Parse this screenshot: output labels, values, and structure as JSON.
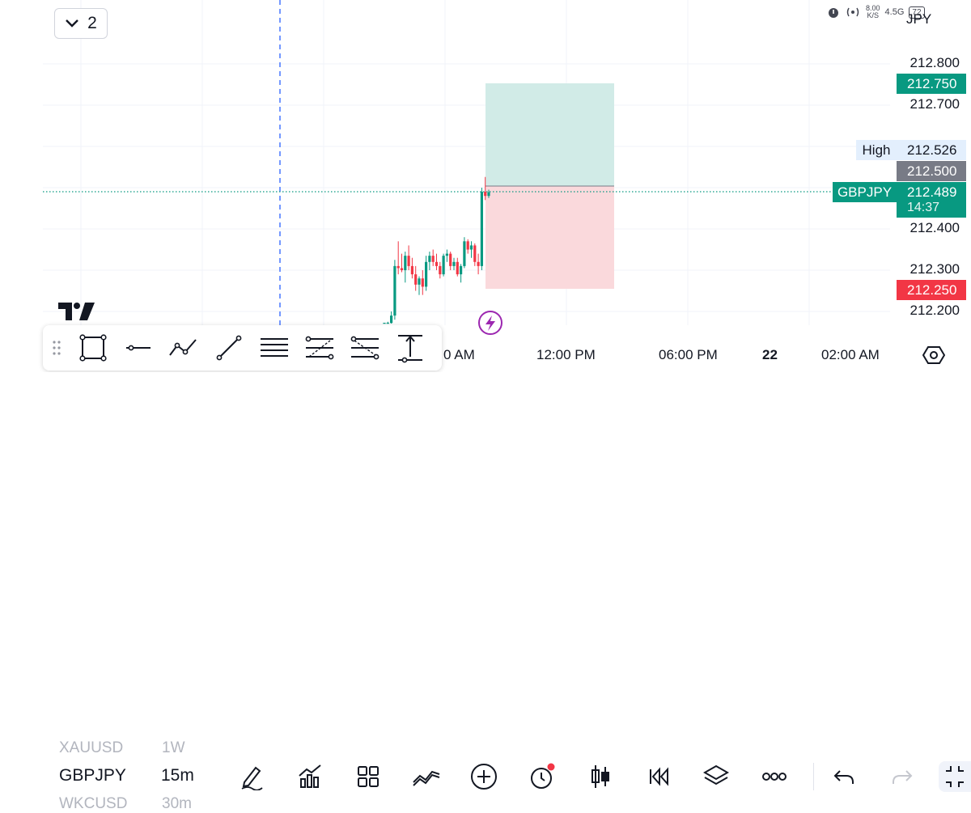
{
  "layout_button": {
    "count": "2"
  },
  "status_bar": {
    "speed_top": "8.00",
    "speed_bottom": "K/S",
    "network": "4.5G",
    "battery": "72"
  },
  "currency": "JPY",
  "chart_data": {
    "type": "candlestick",
    "symbol": "GBPJPY",
    "timeframe": "15m",
    "y_ticks": [
      "212.800",
      "212.700",
      "212.400",
      "212.300",
      "212.200"
    ],
    "ylim": [
      212.17,
      212.86
    ],
    "x_ticks": [
      "0 AM",
      "12:00 PM",
      "06:00 PM",
      "22",
      "02:00 AM"
    ],
    "take_profit": "212.750",
    "stop_loss": "212.250",
    "entry": "212.500",
    "current_price": "212.489",
    "countdown": "14:37",
    "high_label": "High",
    "high_value": "212.526",
    "candles": [
      {
        "o": 212.166,
        "h": 212.17,
        "l": 212.15,
        "c": 212.168
      },
      {
        "o": 212.168,
        "h": 212.175,
        "l": 212.158,
        "c": 212.172
      },
      {
        "o": 212.172,
        "h": 212.2,
        "l": 212.15,
        "c": 212.19
      },
      {
        "o": 212.19,
        "h": 212.325,
        "l": 212.18,
        "c": 212.31
      },
      {
        "o": 212.31,
        "h": 212.37,
        "l": 212.29,
        "c": 212.305
      },
      {
        "o": 212.305,
        "h": 212.34,
        "l": 212.295,
        "c": 212.3
      },
      {
        "o": 212.3,
        "h": 212.345,
        "l": 212.27,
        "c": 212.335
      },
      {
        "o": 212.335,
        "h": 212.36,
        "l": 212.3,
        "c": 212.31
      },
      {
        "o": 212.31,
        "h": 212.33,
        "l": 212.28,
        "c": 212.29
      },
      {
        "o": 212.29,
        "h": 212.31,
        "l": 212.25,
        "c": 212.265
      },
      {
        "o": 212.265,
        "h": 212.285,
        "l": 212.24,
        "c": 212.28
      },
      {
        "o": 212.28,
        "h": 212.3,
        "l": 212.24,
        "c": 212.26
      },
      {
        "o": 212.26,
        "h": 212.335,
        "l": 212.25,
        "c": 212.32
      },
      {
        "o": 212.32,
        "h": 212.345,
        "l": 212.3,
        "c": 212.335
      },
      {
        "o": 212.335,
        "h": 212.35,
        "l": 212.31,
        "c": 212.32
      },
      {
        "o": 212.32,
        "h": 212.34,
        "l": 212.3,
        "c": 212.31
      },
      {
        "o": 212.31,
        "h": 212.32,
        "l": 212.28,
        "c": 212.29
      },
      {
        "o": 212.29,
        "h": 212.34,
        "l": 212.285,
        "c": 212.335
      },
      {
        "o": 212.335,
        "h": 212.35,
        "l": 212.32,
        "c": 212.34
      },
      {
        "o": 212.34,
        "h": 212.345,
        "l": 212.3,
        "c": 212.31
      },
      {
        "o": 212.31,
        "h": 212.33,
        "l": 212.3,
        "c": 212.32
      },
      {
        "o": 212.32,
        "h": 212.33,
        "l": 212.285,
        "c": 212.29
      },
      {
        "o": 212.29,
        "h": 212.315,
        "l": 212.27,
        "c": 212.31
      },
      {
        "o": 212.31,
        "h": 212.38,
        "l": 212.305,
        "c": 212.37
      },
      {
        "o": 212.37,
        "h": 212.375,
        "l": 212.34,
        "c": 212.35
      },
      {
        "o": 212.35,
        "h": 212.37,
        "l": 212.33,
        "c": 212.36
      },
      {
        "o": 212.36,
        "h": 212.365,
        "l": 212.31,
        "c": 212.32
      },
      {
        "o": 212.32,
        "h": 212.34,
        "l": 212.29,
        "c": 212.31
      },
      {
        "o": 212.31,
        "h": 212.5,
        "l": 212.3,
        "c": 212.49
      },
      {
        "o": 212.49,
        "h": 212.526,
        "l": 212.47,
        "c": 212.48
      },
      {
        "o": 212.48,
        "h": 212.495,
        "l": 212.475,
        "c": 212.489
      }
    ]
  },
  "bottom_bar": {
    "symbol_prev": "XAUUSD",
    "timeframe_prev": "1W",
    "symbol": "GBPJPY",
    "timeframe": "15m",
    "symbol_next": "WKCUSD",
    "timeframe_next": "30m"
  },
  "icons": {
    "bottom": [
      "pencil-icon",
      "indicators-icon",
      "grid-icon",
      "compare-icon",
      "add-icon",
      "alert-icon",
      "candle-type-icon",
      "replay-icon",
      "layers-icon",
      "more-icon",
      "undo-icon",
      "redo-icon",
      "fullscreen-icon"
    ],
    "draw": [
      "grip-icon",
      "rectangle-icon",
      "horizontal-line-icon",
      "path-icon",
      "trend-line-icon",
      "parallel-channel-icon",
      "fib-retracement-icon",
      "fib-extension-icon",
      "price-range-icon"
    ]
  },
  "colors": {
    "up": "#089981",
    "down": "#f23645",
    "profit_zone": "#d1ebe7",
    "loss_zone": "#fad9dc"
  }
}
